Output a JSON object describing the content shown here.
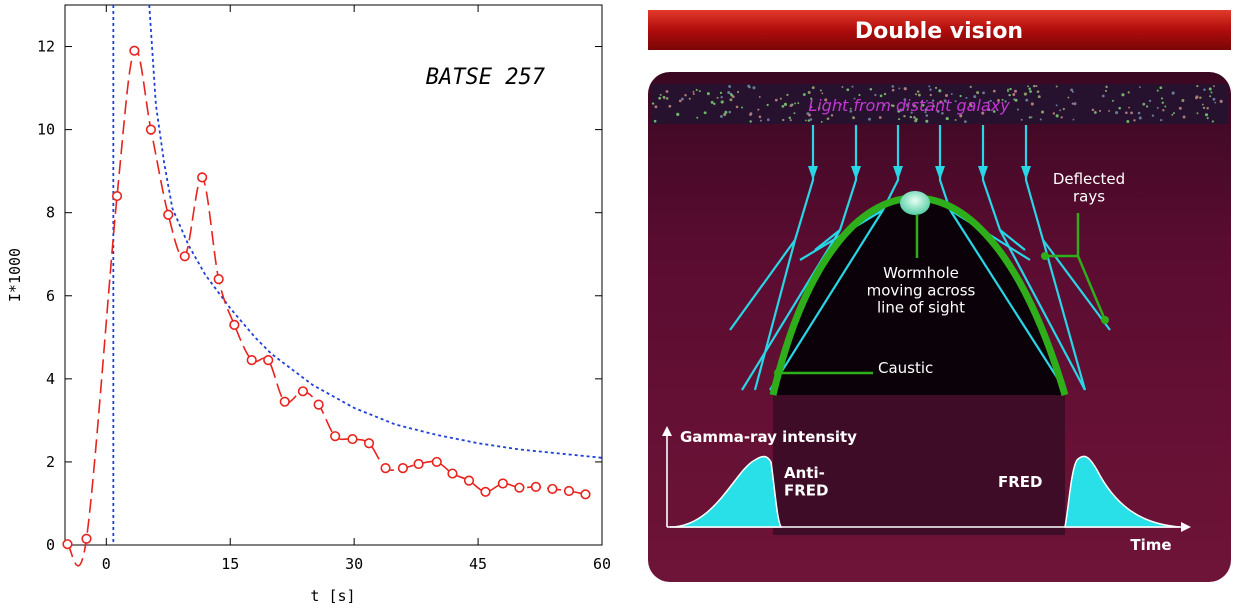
{
  "chart_data": {
    "type": "line",
    "annotation": "BATSE 257",
    "xlabel": "t [s]",
    "ylabel": "I*1000",
    "xlim": [
      -5,
      60
    ],
    "ylim": [
      0,
      13
    ],
    "xticks": [
      0,
      15,
      30,
      45,
      60
    ],
    "yticks": [
      0,
      2,
      4,
      6,
      8,
      10,
      12
    ],
    "grid": false,
    "series": [
      {
        "marker": "circle",
        "color": "#e8231e",
        "points": [
          [
            -4.7,
            0.02
          ],
          [
            -2.4,
            0.15
          ],
          [
            1.3,
            8.4
          ],
          [
            3.4,
            11.9
          ],
          [
            5.4,
            10.0
          ],
          [
            7.5,
            7.95
          ],
          [
            9.5,
            6.95
          ],
          [
            11.6,
            8.85
          ],
          [
            13.6,
            6.4
          ],
          [
            15.5,
            5.3
          ],
          [
            17.6,
            4.45
          ],
          [
            19.6,
            4.45
          ],
          [
            21.6,
            3.45
          ],
          [
            23.8,
            3.7
          ],
          [
            25.7,
            3.38
          ],
          [
            27.7,
            2.62
          ],
          [
            29.8,
            2.55
          ],
          [
            31.8,
            2.45
          ],
          [
            33.8,
            1.85
          ],
          [
            35.9,
            1.85
          ],
          [
            37.8,
            1.95
          ],
          [
            40.0,
            2.0
          ],
          [
            41.9,
            1.72
          ],
          [
            43.9,
            1.55
          ],
          [
            45.9,
            1.28
          ],
          [
            48.0,
            1.48
          ],
          [
            50.0,
            1.38
          ],
          [
            52.0,
            1.4
          ],
          [
            54.0,
            1.35
          ],
          [
            56.0,
            1.3
          ],
          [
            58.0,
            1.22
          ]
        ]
      },
      {
        "style": "dotted",
        "color": "#1f3fd8",
        "function": "hyperbolic decay",
        "points": [
          [
            0.85,
            13
          ],
          [
            0.85,
            0
          ],
          [
            5.2,
            13
          ],
          [
            6,
            10.6
          ],
          [
            7,
            9.2
          ],
          [
            8,
            8.1
          ],
          [
            10,
            7.2
          ],
          [
            12,
            6.5
          ],
          [
            15,
            5.7
          ],
          [
            18,
            5.0
          ],
          [
            20,
            4.6
          ],
          [
            25,
            3.85
          ],
          [
            30,
            3.3
          ],
          [
            35,
            2.9
          ],
          [
            40,
            2.65
          ],
          [
            45,
            2.45
          ],
          [
            50,
            2.3
          ],
          [
            55,
            2.2
          ],
          [
            60,
            2.1
          ]
        ]
      }
    ]
  },
  "illustration": {
    "title": "Double vision",
    "source_label": "Light from distant galaxy",
    "deflected_label": "Deflected\nrays",
    "wormhole_label": "Wormhole\nmoving across\nline of sight",
    "caustic_label": "Caustic",
    "intensity_label": "Gamma-ray intensity",
    "antifred_label": "Anti-\nFRED",
    "fred_label": "FRED",
    "time_label": "Time",
    "colors": {
      "banner": "#c01010",
      "background": "#5a0a2c",
      "rays": "#28d6e6",
      "caustic": "#2fae1c",
      "pulse": "#2ae0e8"
    }
  }
}
